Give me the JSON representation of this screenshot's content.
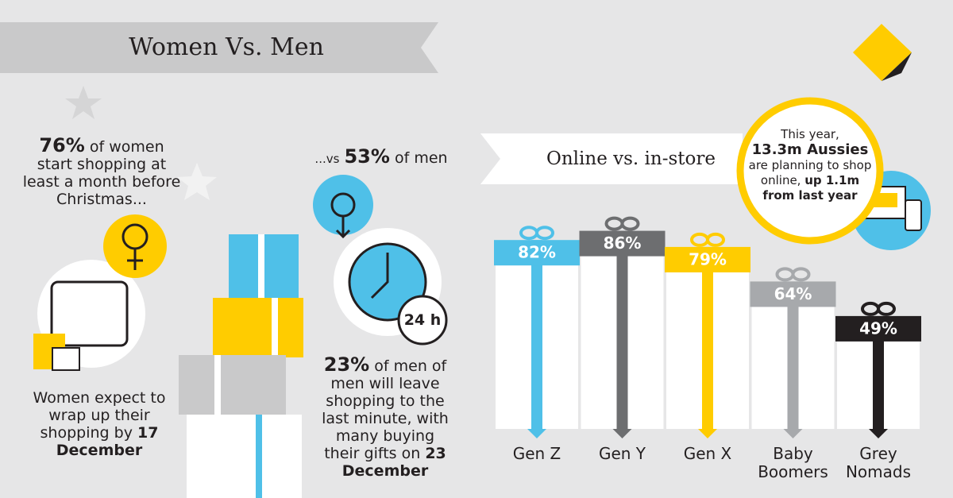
{
  "header": {
    "title": "Women Vs. Men"
  },
  "women": {
    "stat": "76%",
    "stat_text": "of women start shopping at least a month before Christmas...",
    "wrap_text": "Women expect to wrap up their shopping by",
    "wrap_date": "17 December"
  },
  "men": {
    "prefix": "...vs",
    "stat": "53%",
    "stat_text": "of men",
    "clock_label": "24 h",
    "last_stat": "23%",
    "last_text": "of men of men will leave shopping to the last minute, with many buying their gifts on",
    "last_date": "23 December"
  },
  "callout": {
    "line1": "This year,",
    "bold1": "13.3m Aussies",
    "line2": "are planning to shop online,",
    "bold2": "up 1.1m from last year"
  },
  "chart_data": {
    "type": "bar",
    "title": "Online vs. in-store",
    "categories": [
      "Gen Z",
      "Gen Y",
      "Gen X",
      "Baby Boomers",
      "Grey Nomads"
    ],
    "values": [
      82,
      86,
      79,
      64,
      49
    ],
    "value_labels": [
      "82%",
      "86%",
      "79%",
      "64%",
      "49%"
    ],
    "colors": [
      "#4fc0e8",
      "#6d6e70",
      "#ffcc00",
      "#a7a9ac",
      "#231f20"
    ]
  }
}
